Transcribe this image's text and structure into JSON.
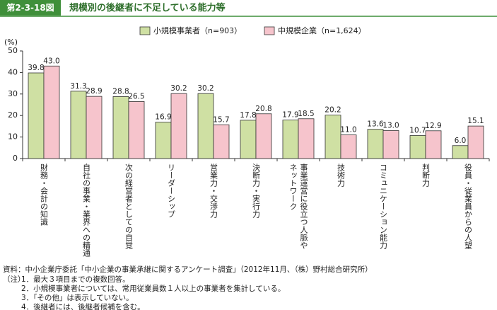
{
  "figure_label": "第2-3-18図",
  "title": "規模別の後継者に不足している能力等",
  "chart_data": {
    "type": "bar",
    "ylabel": "(%)",
    "categories": [
      "財務・会計の知識",
      "自社の事業・業界への精通",
      "次の経営者としての自覚",
      "リーダーシップ",
      "営業力・交渉力",
      "決断力・実行力",
      "事業運営に役立つ人脈や\nネットワーク",
      "技術力",
      "コミュニケーション能力",
      "判断力",
      "役員・従業員からの人望"
    ],
    "series": [
      {
        "name": "小規模事業者（n=903）",
        "color": "#cfe0a3",
        "values": [
          39.8,
          31.3,
          28.8,
          16.9,
          30.2,
          17.8,
          17.9,
          20.2,
          13.6,
          10.7,
          6.0
        ],
        "value_labels": [
          "39.8",
          "31.3",
          "28.8",
          "16.9",
          "30.2",
          "17.8",
          "17.9",
          "20.2",
          "13.6",
          "10.7",
          "6.0"
        ]
      },
      {
        "name": "中規模企業（n=1,624）",
        "color": "#f6c4cc",
        "values": [
          43.0,
          28.9,
          26.5,
          30.2,
          15.7,
          20.8,
          18.5,
          11.0,
          13.0,
          12.9,
          15.1
        ],
        "value_labels": [
          "43.0",
          "28.9",
          "26.5",
          "30.2",
          "15.7",
          "20.8",
          "18.5",
          "11.0",
          "13.0",
          "12.9",
          "15.1"
        ]
      }
    ],
    "ylim": [
      0,
      50
    ],
    "yticks": [
      0,
      10,
      20,
      30,
      40,
      50
    ],
    "grid": false
  },
  "source": "資料：中小企業庁委託「中小企業の事業承継に関するアンケート調査」（2012年11月、（株）野村総合研究所）",
  "notes": {
    "label": "（注）",
    "items": [
      "1．最大３項目までの複数回答。",
      "2．小規模事業者については、常用従業員数１人以上の事業者を集計している。",
      "3．「その他」は表示していない。",
      "4．後継者には、後継者候補を含む。"
    ]
  }
}
